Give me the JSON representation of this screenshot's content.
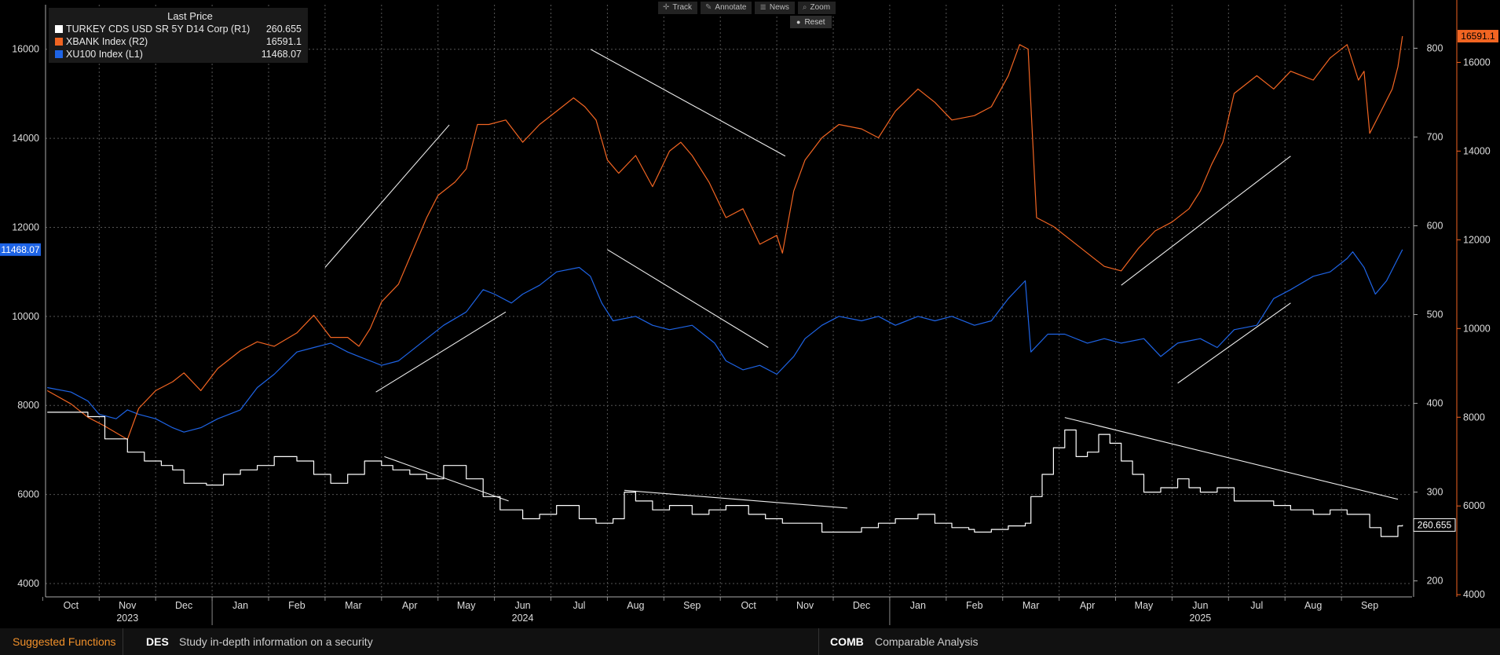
{
  "legend": {
    "header": "Last Price",
    "items": [
      {
        "label": "TURKEY CDS USD SR 5Y D14 Corp  (R1)",
        "value": "260.655",
        "color": "#ffffff"
      },
      {
        "label": "XBANK Index  (R2)",
        "value": "16591.1",
        "color": "#f26522"
      },
      {
        "label": "XU100 Index  (L1)",
        "value": "11468.07",
        "color": "#1e64e6"
      }
    ]
  },
  "toolbar": {
    "track_label": "Track",
    "annotate_label": "Annotate",
    "news_label": "News",
    "zoom_label": "Zoom",
    "reset_label": "Reset"
  },
  "footer": {
    "suggested_label": "Suggested Functions",
    "fn1_code": "DES",
    "fn1_desc": "Study in-depth information on a security",
    "fn2_code": "COMB",
    "fn2_desc": "Comparable Analysis"
  },
  "chart_data": {
    "type": "line",
    "x_months": [
      "Oct",
      "Nov",
      "Dec",
      "Jan",
      "Feb",
      "Mar",
      "Apr",
      "May",
      "Jun",
      "Jul",
      "Aug",
      "Sep",
      "Oct",
      "Nov",
      "Dec",
      "Jan",
      "Feb",
      "Mar",
      "Apr",
      "May",
      "Jun",
      "Jul",
      "Aug",
      "Sep"
    ],
    "x_years": [
      {
        "label": "2023",
        "month_index": 1
      },
      {
        "label": "2024",
        "month_index": 8
      },
      {
        "label": "2025",
        "month_index": 20
      }
    ],
    "x_range": [
      -0.45,
      23.75
    ],
    "axes": {
      "L1": {
        "ylim": [
          3700,
          17000
        ],
        "ticks": [
          4000,
          6000,
          8000,
          10000,
          12000,
          14000,
          16000
        ]
      },
      "R1": {
        "ylim": [
          182,
          849
        ],
        "ticks": [
          200,
          300,
          400,
          500,
          600,
          700,
          800
        ]
      },
      "R2": {
        "ylim": [
          3950,
          17300
        ],
        "ticks": [
          4000,
          6000,
          8000,
          10000,
          12000,
          14000,
          16000
        ]
      }
    },
    "grid": true,
    "legend_position": "top-left",
    "series": [
      {
        "name": "XU100 Index  (L1)",
        "axis": "L1",
        "color": "#1e64e6",
        "last_label": "11468.07",
        "points": [
          [
            -0.42,
            8400
          ],
          [
            0,
            8300
          ],
          [
            0.3,
            8100
          ],
          [
            0.5,
            7800
          ],
          [
            0.8,
            7700
          ],
          [
            1,
            7900
          ],
          [
            1.2,
            7800
          ],
          [
            1.5,
            7700
          ],
          [
            1.8,
            7500
          ],
          [
            2,
            7400
          ],
          [
            2.3,
            7500
          ],
          [
            2.6,
            7700
          ],
          [
            3,
            7900
          ],
          [
            3.3,
            8400
          ],
          [
            3.6,
            8700
          ],
          [
            4,
            9200
          ],
          [
            4.3,
            9300
          ],
          [
            4.6,
            9400
          ],
          [
            4.9,
            9200
          ],
          [
            5.1,
            9100
          ],
          [
            5.3,
            9000
          ],
          [
            5.5,
            8900
          ],
          [
            5.8,
            9000
          ],
          [
            6,
            9200
          ],
          [
            6.3,
            9500
          ],
          [
            6.6,
            9800
          ],
          [
            7,
            10100
          ],
          [
            7.3,
            10600
          ],
          [
            7.5,
            10500
          ],
          [
            7.8,
            10300
          ],
          [
            8,
            10500
          ],
          [
            8.3,
            10700
          ],
          [
            8.6,
            11000
          ],
          [
            9,
            11100
          ],
          [
            9.2,
            10900
          ],
          [
            9.4,
            10300
          ],
          [
            9.6,
            9900
          ],
          [
            10,
            10000
          ],
          [
            10.3,
            9800
          ],
          [
            10.6,
            9700
          ],
          [
            11,
            9800
          ],
          [
            11.2,
            9600
          ],
          [
            11.4,
            9400
          ],
          [
            11.6,
            9000
          ],
          [
            11.9,
            8800
          ],
          [
            12.2,
            8900
          ],
          [
            12.5,
            8700
          ],
          [
            12.8,
            9100
          ],
          [
            13,
            9500
          ],
          [
            13.3,
            9800
          ],
          [
            13.6,
            10000
          ],
          [
            14,
            9900
          ],
          [
            14.3,
            10000
          ],
          [
            14.6,
            9800
          ],
          [
            15,
            10000
          ],
          [
            15.3,
            9900
          ],
          [
            15.6,
            10000
          ],
          [
            16,
            9800
          ],
          [
            16.3,
            9900
          ],
          [
            16.6,
            10400
          ],
          [
            16.9,
            10800
          ],
          [
            17,
            9200
          ],
          [
            17.3,
            9600
          ],
          [
            17.6,
            9600
          ],
          [
            18,
            9400
          ],
          [
            18.3,
            9500
          ],
          [
            18.6,
            9400
          ],
          [
            19,
            9500
          ],
          [
            19.3,
            9100
          ],
          [
            19.6,
            9400
          ],
          [
            20,
            9500
          ],
          [
            20.3,
            9300
          ],
          [
            20.6,
            9700
          ],
          [
            21,
            9800
          ],
          [
            21.3,
            10400
          ],
          [
            21.6,
            10600
          ],
          [
            22,
            10900
          ],
          [
            22.3,
            11000
          ],
          [
            22.6,
            11300
          ],
          [
            22.7,
            11450
          ],
          [
            22.9,
            11100
          ],
          [
            23.1,
            10500
          ],
          [
            23.3,
            10800
          ],
          [
            23.5,
            11300
          ],
          [
            23.58,
            11500
          ]
        ]
      },
      {
        "name": "XBANK Index  (R2)",
        "axis": "R2",
        "color": "#f26522",
        "last_label": "16591.1",
        "points": [
          [
            -0.42,
            8600
          ],
          [
            0,
            8300
          ],
          [
            0.3,
            8000
          ],
          [
            0.6,
            7800
          ],
          [
            1,
            7500
          ],
          [
            1.2,
            8200
          ],
          [
            1.5,
            8600
          ],
          [
            1.8,
            8800
          ],
          [
            2,
            9000
          ],
          [
            2.3,
            8600
          ],
          [
            2.6,
            9100
          ],
          [
            3,
            9500
          ],
          [
            3.3,
            9700
          ],
          [
            3.6,
            9600
          ],
          [
            4,
            9900
          ],
          [
            4.3,
            10300
          ],
          [
            4.6,
            9800
          ],
          [
            4.9,
            9800
          ],
          [
            5.1,
            9600
          ],
          [
            5.3,
            10000
          ],
          [
            5.5,
            10600
          ],
          [
            5.8,
            11000
          ],
          [
            6,
            11600
          ],
          [
            6.3,
            12500
          ],
          [
            6.5,
            13000
          ],
          [
            6.8,
            13300
          ],
          [
            7,
            13600
          ],
          [
            7.2,
            14600
          ],
          [
            7.4,
            14600
          ],
          [
            7.7,
            14700
          ],
          [
            8,
            14200
          ],
          [
            8.3,
            14600
          ],
          [
            8.6,
            14900
          ],
          [
            8.9,
            15200
          ],
          [
            9.1,
            15000
          ],
          [
            9.3,
            14700
          ],
          [
            9.5,
            13800
          ],
          [
            9.7,
            13500
          ],
          [
            10,
            13900
          ],
          [
            10.3,
            13200
          ],
          [
            10.6,
            14000
          ],
          [
            10.8,
            14200
          ],
          [
            11,
            13900
          ],
          [
            11.3,
            13300
          ],
          [
            11.6,
            12500
          ],
          [
            11.9,
            12700
          ],
          [
            12.2,
            11900
          ],
          [
            12.5,
            12100
          ],
          [
            12.6,
            11700
          ],
          [
            12.8,
            13100
          ],
          [
            13,
            13800
          ],
          [
            13.3,
            14300
          ],
          [
            13.6,
            14600
          ],
          [
            14,
            14500
          ],
          [
            14.3,
            14300
          ],
          [
            14.6,
            14900
          ],
          [
            15,
            15400
          ],
          [
            15.3,
            15100
          ],
          [
            15.6,
            14700
          ],
          [
            16,
            14800
          ],
          [
            16.3,
            15000
          ],
          [
            16.6,
            15700
          ],
          [
            16.8,
            16400
          ],
          [
            16.95,
            16300
          ],
          [
            17.1,
            12500
          ],
          [
            17.4,
            12300
          ],
          [
            17.7,
            12000
          ],
          [
            18,
            11700
          ],
          [
            18.3,
            11400
          ],
          [
            18.6,
            11300
          ],
          [
            18.9,
            11800
          ],
          [
            19.2,
            12200
          ],
          [
            19.5,
            12400
          ],
          [
            19.8,
            12700
          ],
          [
            20,
            13100
          ],
          [
            20.2,
            13700
          ],
          [
            20.4,
            14200
          ],
          [
            20.6,
            15300
          ],
          [
            21,
            15700
          ],
          [
            21.3,
            15400
          ],
          [
            21.6,
            15800
          ],
          [
            22,
            15600
          ],
          [
            22.3,
            16100
          ],
          [
            22.6,
            16400
          ],
          [
            22.8,
            15600
          ],
          [
            22.9,
            15800
          ],
          [
            23,
            14400
          ],
          [
            23.2,
            14900
          ],
          [
            23.4,
            15400
          ],
          [
            23.5,
            15900
          ],
          [
            23.58,
            16591
          ]
        ]
      },
      {
        "name": "TURKEY CDS USD SR 5Y D14 Corp  (R1)",
        "axis": "R1",
        "color": "#ffffff",
        "last_label": "260.655",
        "points": [
          [
            -0.42,
            390
          ],
          [
            0,
            390
          ],
          [
            0.3,
            385
          ],
          [
            0.6,
            360
          ],
          [
            1,
            345
          ],
          [
            1.3,
            335
          ],
          [
            1.6,
            330
          ],
          [
            1.8,
            325
          ],
          [
            2,
            310
          ],
          [
            2.4,
            308
          ],
          [
            2.7,
            320
          ],
          [
            3,
            325
          ],
          [
            3.3,
            330
          ],
          [
            3.6,
            340
          ],
          [
            4,
            335
          ],
          [
            4.3,
            320
          ],
          [
            4.6,
            310
          ],
          [
            4.9,
            320
          ],
          [
            5.2,
            335
          ],
          [
            5.5,
            330
          ],
          [
            5.7,
            325
          ],
          [
            6,
            320
          ],
          [
            6.3,
            315
          ],
          [
            6.6,
            330
          ],
          [
            7,
            315
          ],
          [
            7.3,
            295
          ],
          [
            7.6,
            280
          ],
          [
            8,
            270
          ],
          [
            8.3,
            275
          ],
          [
            8.6,
            285
          ],
          [
            9,
            270
          ],
          [
            9.3,
            265
          ],
          [
            9.6,
            270
          ],
          [
            9.8,
            300
          ],
          [
            10,
            290
          ],
          [
            10.3,
            280
          ],
          [
            10.6,
            285
          ],
          [
            11,
            275
          ],
          [
            11.3,
            280
          ],
          [
            11.6,
            285
          ],
          [
            12,
            275
          ],
          [
            12.3,
            270
          ],
          [
            12.6,
            265
          ],
          [
            13,
            265
          ],
          [
            13.3,
            255
          ],
          [
            13.6,
            255
          ],
          [
            14,
            260
          ],
          [
            14.3,
            265
          ],
          [
            14.6,
            270
          ],
          [
            15,
            275
          ],
          [
            15.3,
            265
          ],
          [
            15.6,
            260
          ],
          [
            15.9,
            258
          ],
          [
            16,
            255
          ],
          [
            16.3,
            258
          ],
          [
            16.6,
            262
          ],
          [
            16.9,
            265
          ],
          [
            17,
            295
          ],
          [
            17.2,
            320
          ],
          [
            17.4,
            350
          ],
          [
            17.6,
            370
          ],
          [
            17.8,
            340
          ],
          [
            18,
            345
          ],
          [
            18.2,
            365
          ],
          [
            18.4,
            355
          ],
          [
            18.6,
            335
          ],
          [
            18.8,
            320
          ],
          [
            19,
            300
          ],
          [
            19.3,
            305
          ],
          [
            19.6,
            315
          ],
          [
            19.8,
            305
          ],
          [
            20,
            300
          ],
          [
            20.3,
            305
          ],
          [
            20.6,
            290
          ],
          [
            21,
            290
          ],
          [
            21.3,
            285
          ],
          [
            21.6,
            280
          ],
          [
            22,
            275
          ],
          [
            22.3,
            280
          ],
          [
            22.6,
            275
          ],
          [
            23,
            260
          ],
          [
            23.2,
            250
          ],
          [
            23.4,
            250
          ],
          [
            23.5,
            262
          ],
          [
            23.58,
            263
          ]
        ]
      }
    ],
    "trend_lines": [
      {
        "axis": "L1",
        "from": [
          4.5,
          11100
        ],
        "to": [
          6.7,
          14300
        ]
      },
      {
        "axis": "L1",
        "from": [
          5.4,
          8300
        ],
        "to": [
          7.7,
          10100
        ]
      },
      {
        "axis": "L1",
        "from": [
          9.2,
          16000
        ],
        "to": [
          12.65,
          13600
        ]
      },
      {
        "axis": "L1",
        "from": [
          9.5,
          11500
        ],
        "to": [
          12.35,
          9300
        ]
      },
      {
        "axis": "L1",
        "from": [
          18.6,
          10700
        ],
        "to": [
          21.6,
          13600
        ]
      },
      {
        "axis": "L1",
        "from": [
          19.6,
          8500
        ],
        "to": [
          21.6,
          10300
        ]
      },
      {
        "axis": "R1",
        "from": [
          5.55,
          340
        ],
        "to": [
          7.75,
          290
        ]
      },
      {
        "axis": "R1",
        "from": [
          9.8,
          302
        ],
        "to": [
          13.75,
          282
        ]
      },
      {
        "axis": "R1",
        "from": [
          17.6,
          384
        ],
        "to": [
          23.5,
          292
        ]
      }
    ]
  }
}
